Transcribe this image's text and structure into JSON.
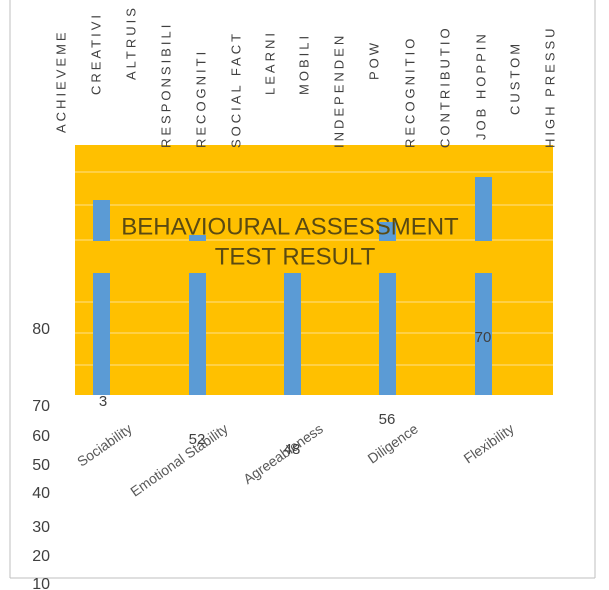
{
  "column_headers": [
    "ACHIEVEME",
    "CREATIVI",
    "ALTRUIS",
    "RESPONSIBILI",
    "RECOGNITI",
    "SOCIAL FACT",
    "LEARNI",
    "MOBILI",
    "INDEPENDEN",
    "POW",
    "RECOGNITIO",
    "CONTRIBUTIO",
    "JOB HOPPIN",
    "CUSTOM",
    "HIGH PRESSU"
  ],
  "title_lines": [
    "BEHAVIOURAL ASSESSMENT",
    "TEST RESULT"
  ],
  "categories": [
    "Sociability",
    "Emotional Stability",
    "Agreeableness",
    "Diligence",
    "Flexibility"
  ],
  "data_labels": [
    3,
    52,
    48,
    56,
    70
  ],
  "axis_labels": [
    80,
    70,
    60,
    50,
    40,
    30,
    20,
    10
  ]
}
